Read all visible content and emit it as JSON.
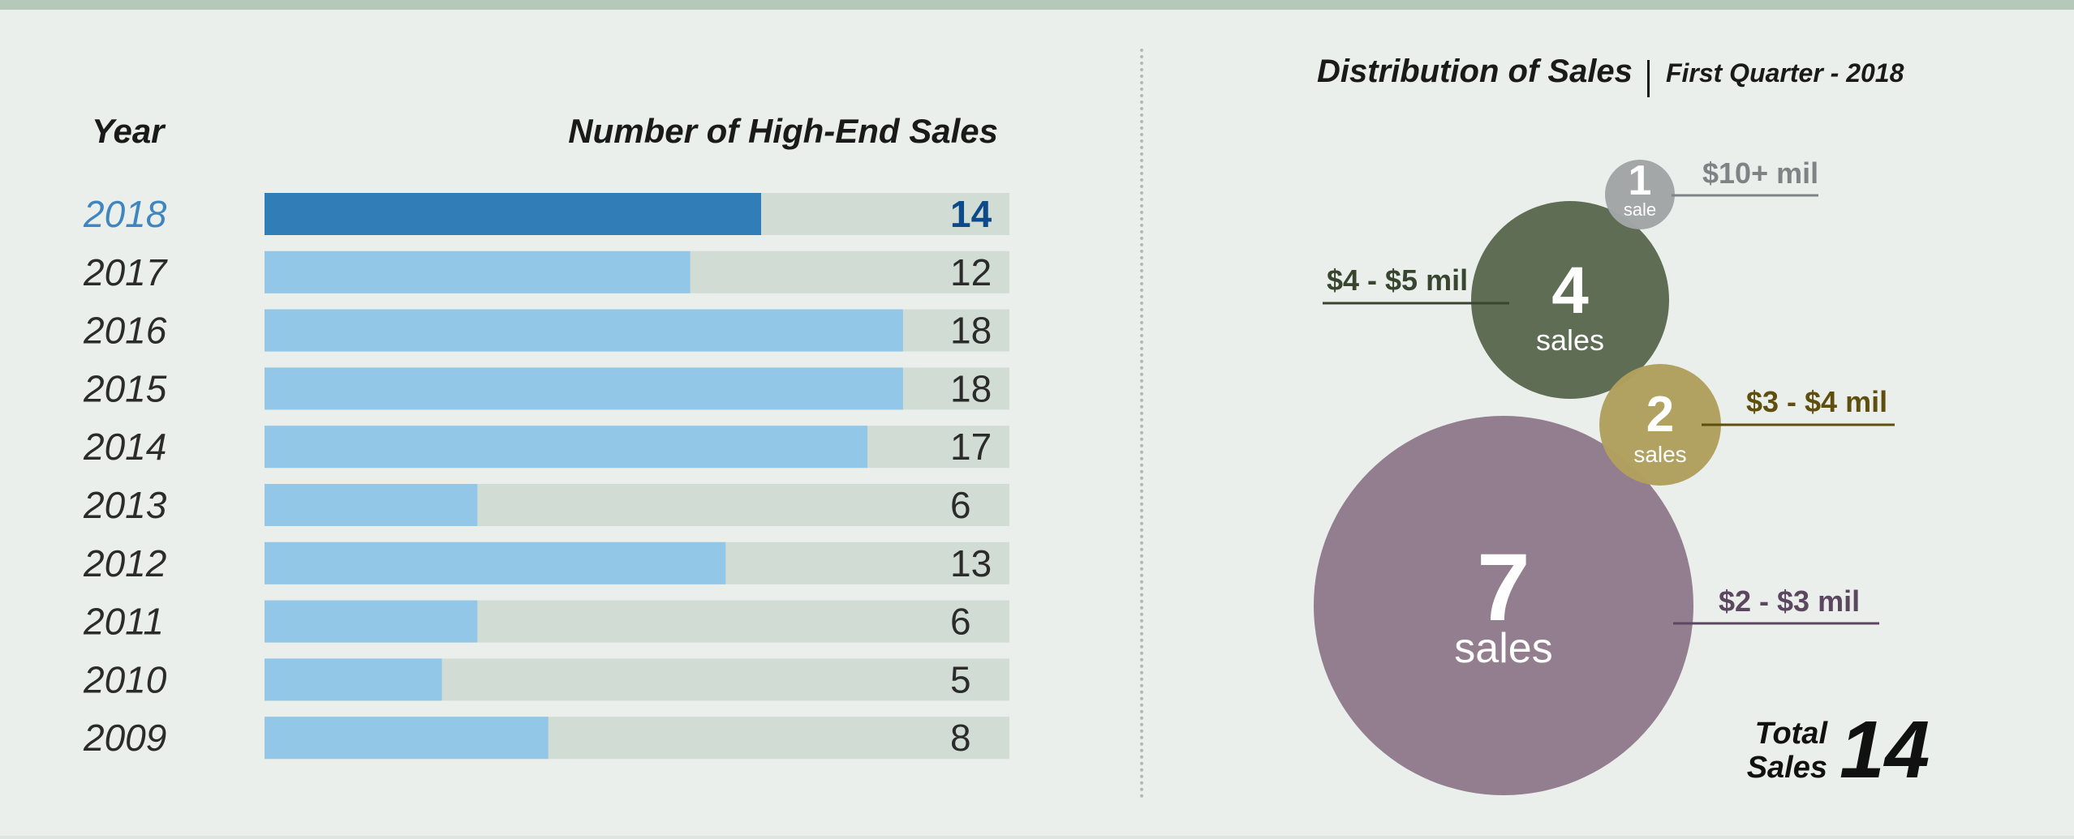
{
  "left_panel": {
    "year_header": "Year",
    "sales_header": "Number of High-End Sales"
  },
  "right_panel": {
    "title": "Distribution of Sales",
    "subtitle": "First Quarter - 2018",
    "total_label_line1": "Total",
    "total_label_line2": "Sales",
    "total_value": "14"
  },
  "colors": {
    "highlight_bar": "#317db7",
    "highlight_text_year": "#3f86c0",
    "highlight_text_value": "#0d4a8a",
    "bar": "#93c7e7",
    "track": "#d1dcd4",
    "text": "#2b2b2b"
  },
  "chart_data": [
    {
      "type": "bar",
      "orientation": "horizontal",
      "xlabel": "Number of High-End Sales",
      "ylabel": "Year",
      "categories": [
        "2018",
        "2017",
        "2016",
        "2015",
        "2014",
        "2013",
        "2012",
        "2011",
        "2010",
        "2009"
      ],
      "values": [
        14,
        12,
        18,
        18,
        17,
        6,
        13,
        6,
        5,
        8
      ],
      "highlight": "2018",
      "xlim": [
        0,
        21
      ]
    },
    {
      "type": "bubble",
      "title": "Distribution of Sales",
      "subtitle": "First Quarter - 2018",
      "series": [
        {
          "label": "$10+ mil",
          "count": 1,
          "unit": "sale",
          "color": "#a1a5a6",
          "label_color": "#7e8486"
        },
        {
          "label": "$4 - $5 mil",
          "count": 4,
          "unit": "sales",
          "color": "#5d6a52",
          "label_color": "#38452f"
        },
        {
          "label": "$3 - $4 mil",
          "count": 2,
          "unit": "sales",
          "color": "#b0a05e",
          "label_color": "#5f4f0e"
        },
        {
          "label": "$2 - $3 mil",
          "count": 7,
          "unit": "sales",
          "color": "#917b8e",
          "label_color": "#5c4761"
        }
      ],
      "total": 14
    }
  ]
}
